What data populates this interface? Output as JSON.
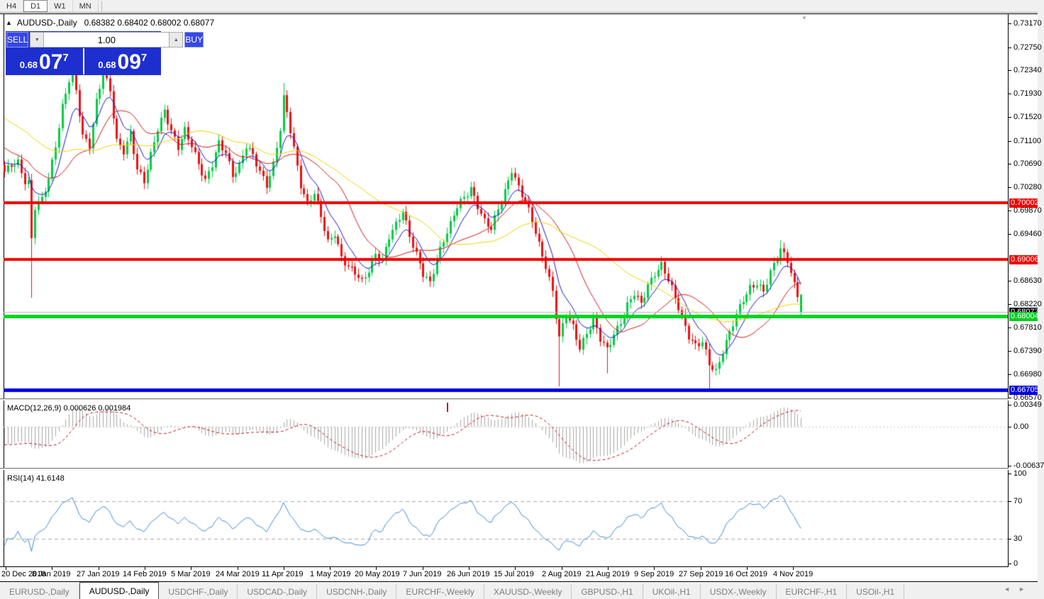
{
  "toolbar": {
    "timeframes": [
      {
        "label": "H4",
        "active": false
      },
      {
        "label": "D1",
        "active": true
      },
      {
        "label": "W1",
        "active": false
      },
      {
        "label": "MN",
        "active": false
      }
    ]
  },
  "chart_header": {
    "collapse_icon": "▲",
    "symbol": "AUDUSD-,Daily",
    "ohlc_text": "0.68382 0.68402 0.68002 0.68077"
  },
  "trade_panel": {
    "sell_label": "SELL",
    "buy_label": "BUY",
    "volume": "1.00",
    "spin_down": "▼",
    "spin_up": "▲",
    "sell_price": {
      "small": "0.68",
      "big": "07",
      "sup": "7"
    },
    "buy_price": {
      "small": "0.68",
      "big": "09",
      "sup": "7"
    }
  },
  "macd_panel": {
    "label_text": "MACD(12,26,9) 0.000626 0.001984"
  },
  "rsi_panel": {
    "label_text": "RSI(14) 41.6148"
  },
  "tabs": {
    "items": [
      {
        "label": "EURUSD-,Daily",
        "active": false
      },
      {
        "label": "AUDUSD-,Daily",
        "active": true
      },
      {
        "label": "USDCHF-,Daily",
        "active": false
      },
      {
        "label": "USDCAD-,Daily",
        "active": false
      },
      {
        "label": "USDCNH-,Daily",
        "active": false
      },
      {
        "label": "EURCHF-,Weekly",
        "active": false
      },
      {
        "label": "XAUUSD-,Weekly",
        "active": false
      },
      {
        "label": "GBPUSD-,H1",
        "active": false
      },
      {
        "label": "UKOil-,H1",
        "active": false
      },
      {
        "label": "USDX-,Weekly",
        "active": false
      },
      {
        "label": "EURCHF-,H1",
        "active": false
      },
      {
        "label": "USOil-,H1",
        "active": false
      }
    ],
    "scroll_left": "◄",
    "scroll_right": "►"
  },
  "chart_data": {
    "type": "candlestick",
    "symbol": "AUDUSD-",
    "timeframe": "Daily",
    "current_bar": {
      "open": 0.68382,
      "high": 0.68402,
      "low": 0.68002,
      "close": 0.68077
    },
    "price_axis_ticks": [
      0.7317,
      0.7275,
      0.7234,
      0.7193,
      0.7152,
      0.711,
      0.7069,
      0.7028,
      0.6987,
      0.6946,
      0.6863,
      0.6822,
      0.6781,
      0.6739,
      0.6698,
      0.6657
    ],
    "price_badges": [
      {
        "text": "0.70002",
        "price": 0.70002,
        "bg": "#ee0000"
      },
      {
        "text": "0.69006",
        "price": 0.69006,
        "bg": "#ee0000"
      },
      {
        "text": "0.68077",
        "price": 0.68077,
        "bg": "#000000"
      },
      {
        "text": "0.68004",
        "price": 0.68004,
        "bg": "#00cc22"
      },
      {
        "text": "0.66705",
        "price": 0.66705,
        "bg": "#0000e0"
      }
    ],
    "hlines": [
      {
        "price": 0.70002,
        "color": "#ee0000",
        "width": 4
      },
      {
        "price": 0.69006,
        "color": "#ee0000",
        "width": 4
      },
      {
        "price": 0.68004,
        "color": "#00d41e",
        "width": 5
      },
      {
        "price": 0.66705,
        "color": "#0000e0",
        "width": 5
      }
    ],
    "current_price_line": {
      "price": 0.68077,
      "color": "#b8b8b8"
    },
    "x_labels": [
      "20 Dec 2018",
      "8 Jan 2019",
      "27 Jan 2019",
      "14 Feb 2019",
      "5 Mar 2019",
      "24 Mar 2019",
      "11 Apr 2019",
      "1 May 2019",
      "20 May 2019",
      "7 Jun 2019",
      "26 Jun 2019",
      "15 Jul 2019",
      "2 Aug 2019",
      "21 Aug 2019",
      "9 Sep 2019",
      "27 Sep 2019",
      "16 Oct 2019",
      "4 Nov 2019"
    ],
    "bars_total": 235,
    "close_anchors": [
      [
        0,
        0.7052
      ],
      [
        2,
        0.7068
      ],
      [
        4,
        0.7075
      ],
      [
        6,
        0.704
      ],
      [
        7,
        0.7036
      ],
      [
        8,
        0.6935
      ],
      [
        9,
        0.699
      ],
      [
        11,
        0.7005
      ],
      [
        13,
        0.7045
      ],
      [
        15,
        0.7105
      ],
      [
        17,
        0.717
      ],
      [
        19,
        0.7215
      ],
      [
        20,
        0.7228
      ],
      [
        21,
        0.7195
      ],
      [
        23,
        0.712
      ],
      [
        25,
        0.7105
      ],
      [
        27,
        0.718
      ],
      [
        29,
        0.7228
      ],
      [
        31,
        0.7195
      ],
      [
        33,
        0.711
      ],
      [
        35,
        0.7095
      ],
      [
        37,
        0.7125
      ],
      [
        39,
        0.7058
      ],
      [
        41,
        0.7035
      ],
      [
        43,
        0.7085
      ],
      [
        45,
        0.7135
      ],
      [
        47,
        0.7165
      ],
      [
        49,
        0.7125
      ],
      [
        51,
        0.7095
      ],
      [
        53,
        0.7128
      ],
      [
        55,
        0.7105
      ],
      [
        57,
        0.7072
      ],
      [
        59,
        0.7038
      ],
      [
        61,
        0.7065
      ],
      [
        63,
        0.7105
      ],
      [
        65,
        0.7092
      ],
      [
        67,
        0.7052
      ],
      [
        69,
        0.7065
      ],
      [
        71,
        0.7098
      ],
      [
        73,
        0.7082
      ],
      [
        75,
        0.7058
      ],
      [
        77,
        0.7035
      ],
      [
        79,
        0.7068
      ],
      [
        81,
        0.7128
      ],
      [
        82,
        0.7182
      ],
      [
        83,
        0.7158
      ],
      [
        85,
        0.7098
      ],
      [
        87,
        0.7035
      ],
      [
        89,
        0.7
      ],
      [
        91,
        0.7015
      ],
      [
        93,
        0.6975
      ],
      [
        95,
        0.6932
      ],
      [
        97,
        0.695
      ],
      [
        99,
        0.6905
      ],
      [
        101,
        0.6885
      ],
      [
        103,
        0.6875
      ],
      [
        105,
        0.6862
      ],
      [
        107,
        0.6885
      ],
      [
        109,
        0.6912
      ],
      [
        111,
        0.6895
      ],
      [
        113,
        0.6938
      ],
      [
        115,
        0.6962
      ],
      [
        117,
        0.699
      ],
      [
        119,
        0.6945
      ],
      [
        121,
        0.6908
      ],
      [
        123,
        0.6872
      ],
      [
        125,
        0.6858
      ],
      [
        127,
        0.6905
      ],
      [
        129,
        0.6938
      ],
      [
        131,
        0.6962
      ],
      [
        133,
        0.6992
      ],
      [
        135,
        0.7008
      ],
      [
        137,
        0.7028
      ],
      [
        139,
        0.6998
      ],
      [
        141,
        0.6968
      ],
      [
        143,
        0.6952
      ],
      [
        145,
        0.6988
      ],
      [
        147,
        0.7022
      ],
      [
        149,
        0.7062
      ],
      [
        151,
        0.7028
      ],
      [
        153,
        0.7
      ],
      [
        155,
        0.6968
      ],
      [
        157,
        0.6928
      ],
      [
        159,
        0.6892
      ],
      [
        161,
        0.6845
      ],
      [
        162,
        0.68
      ],
      [
        163,
        0.676
      ],
      [
        165,
        0.6802
      ],
      [
        167,
        0.6782
      ],
      [
        169,
        0.6748
      ],
      [
        171,
        0.6772
      ],
      [
        173,
        0.6792
      ],
      [
        175,
        0.6758
      ],
      [
        177,
        0.6742
      ],
      [
        179,
        0.6772
      ],
      [
        181,
        0.6792
      ],
      [
        183,
        0.6818
      ],
      [
        185,
        0.6838
      ],
      [
        187,
        0.6822
      ],
      [
        189,
        0.6858
      ],
      [
        191,
        0.6878
      ],
      [
        193,
        0.689
      ],
      [
        195,
        0.6862
      ],
      [
        197,
        0.6832
      ],
      [
        199,
        0.6802
      ],
      [
        201,
        0.6768
      ],
      [
        203,
        0.6748
      ],
      [
        205,
        0.6752
      ],
      [
        207,
        0.6715
      ],
      [
        209,
        0.6705
      ],
      [
        211,
        0.6742
      ],
      [
        213,
        0.6772
      ],
      [
        215,
        0.68
      ],
      [
        217,
        0.6828
      ],
      [
        219,
        0.6852
      ],
      [
        221,
        0.6862
      ],
      [
        223,
        0.6845
      ],
      [
        225,
        0.6875
      ],
      [
        227,
        0.6902
      ],
      [
        228,
        0.6918
      ],
      [
        230,
        0.6902
      ],
      [
        231,
        0.6882
      ],
      [
        232,
        0.6858
      ],
      [
        233,
        0.6838
      ],
      [
        234,
        0.68077
      ]
    ],
    "wick_overrides": [
      {
        "i": 8,
        "low": 0.6833
      },
      {
        "i": 20,
        "high": 0.7237
      },
      {
        "i": 29,
        "high": 0.724
      },
      {
        "i": 82,
        "high": 0.7212
      },
      {
        "i": 163,
        "low": 0.6677
      },
      {
        "i": 177,
        "low": 0.67
      },
      {
        "i": 207,
        "low": 0.6672
      },
      {
        "i": 228,
        "high": 0.6935
      }
    ],
    "moving_averages": [
      {
        "type": "ema",
        "period": 8,
        "color": "#1515d8"
      },
      {
        "type": "sma",
        "period": 20,
        "color": "#d01818"
      },
      {
        "type": "sma",
        "period": 45,
        "color": "#efd000"
      }
    ],
    "macd": {
      "params": "12,26,9",
      "main_value": 0.000626,
      "signal_value": 0.001984,
      "axis_ticks": [
        "0.00349",
        "0.00",
        "-0.00637"
      ],
      "hist_color": "#a8a8a8",
      "signal_color": "#c41414",
      "red_mark_bar_index": 130
    },
    "rsi": {
      "period": 14,
      "value": 41.6148,
      "levels": [
        70,
        30
      ],
      "axis_ticks": [
        100,
        70,
        30,
        0
      ],
      "color": "#3e8bd8",
      "level_color": "#a8a8a8"
    },
    "colors": {
      "bull": "#00cc44",
      "bear": "#ee1111",
      "background": "#ffffff"
    },
    "last_bar_marker": "▼"
  }
}
